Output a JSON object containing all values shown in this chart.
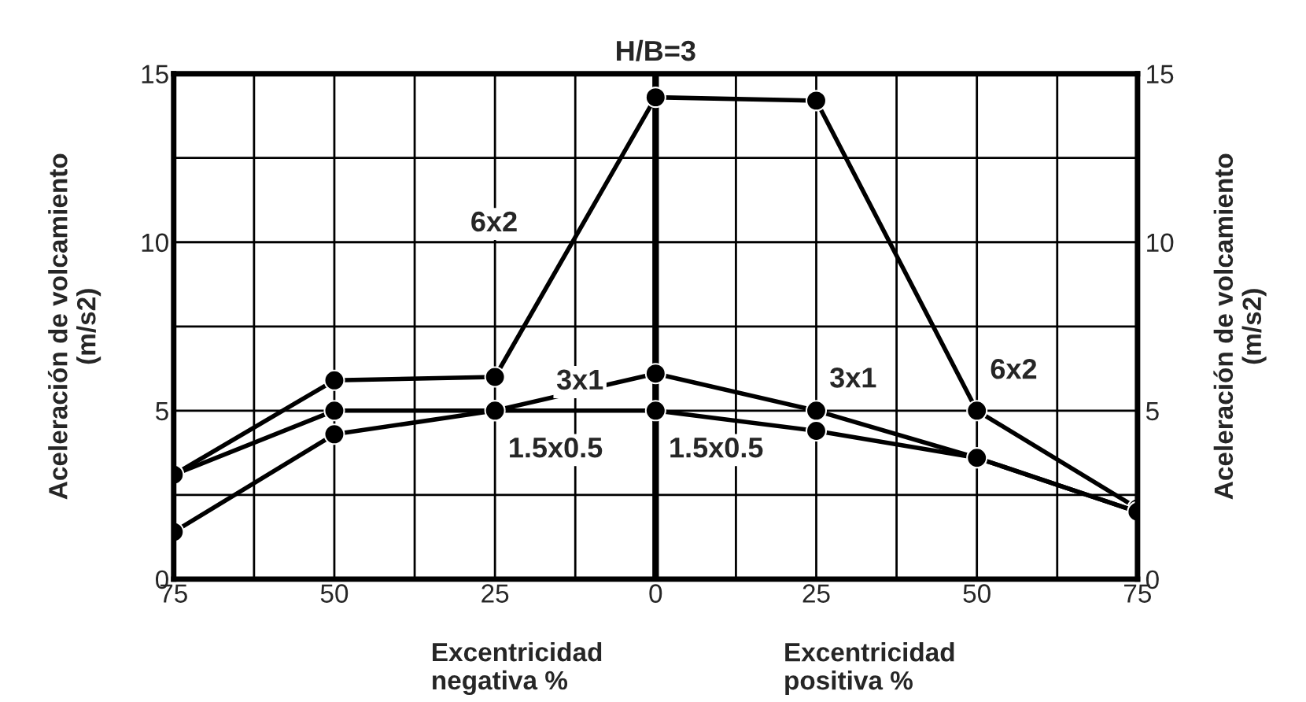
{
  "chart_data": {
    "type": "line",
    "title": "H/B=3",
    "ylabel": "Aceleración de volcamiento\n(m/s2)",
    "y2label": "Aceleración de volcamiento\n(m/s2)",
    "x": [
      -75,
      -50,
      -25,
      0,
      25,
      50,
      75
    ],
    "series": [
      {
        "name": "6x2",
        "color": "#000000",
        "values": [
          3.1,
          5.9,
          6.0,
          14.3,
          14.2,
          5.0,
          2.1
        ]
      },
      {
        "name": "3x1",
        "color": "#000000",
        "values": [
          3.1,
          5.0,
          5.0,
          6.1,
          5.0,
          3.6,
          2.0
        ]
      },
      {
        "name": "1.5x0.5",
        "color": "#000000",
        "values": [
          1.4,
          4.3,
          5.0,
          5.0,
          4.4,
          3.6,
          2.0
        ]
      }
    ],
    "marker": "circle",
    "line_style": "solid",
    "grid": true,
    "legend": false,
    "xlim": [
      -75,
      75
    ],
    "xticks": [
      {
        "value": -75,
        "label": "75"
      },
      {
        "value": -62.5,
        "label": null
      },
      {
        "value": -50,
        "label": "50"
      },
      {
        "value": -37.5,
        "label": null
      },
      {
        "value": -25,
        "label": "25"
      },
      {
        "value": -12.5,
        "label": null
      },
      0,
      {
        "value": 12.5,
        "label": null
      },
      {
        "value": 25,
        "label": "25"
      },
      {
        "value": 37.5,
        "label": null
      },
      {
        "value": 50,
        "label": "50"
      },
      {
        "value": 62.5,
        "label": null
      },
      {
        "value": 75,
        "label": "75"
      }
    ],
    "ylim": [
      0,
      15
    ],
    "yticks": [
      0,
      {
        "value": 2.5,
        "label": null
      },
      5,
      {
        "value": 7.5,
        "label": null
      },
      10,
      {
        "value": 12.5,
        "label": null
      },
      15
    ],
    "y2lim": [
      0,
      15
    ],
    "y2ticks": [
      0,
      {
        "value": 2.5,
        "label": null
      },
      5,
      {
        "value": 7.5,
        "label": null
      },
      10,
      {
        "value": 12.5,
        "label": null
      },
      15
    ],
    "ref_lines": [
      {
        "axis": "x",
        "value": 0,
        "color": "#000000"
      }
    ],
    "annotations": [
      "Excentricidad\nnegativa %",
      "Excentricidad\npositiva %"
    ]
  }
}
